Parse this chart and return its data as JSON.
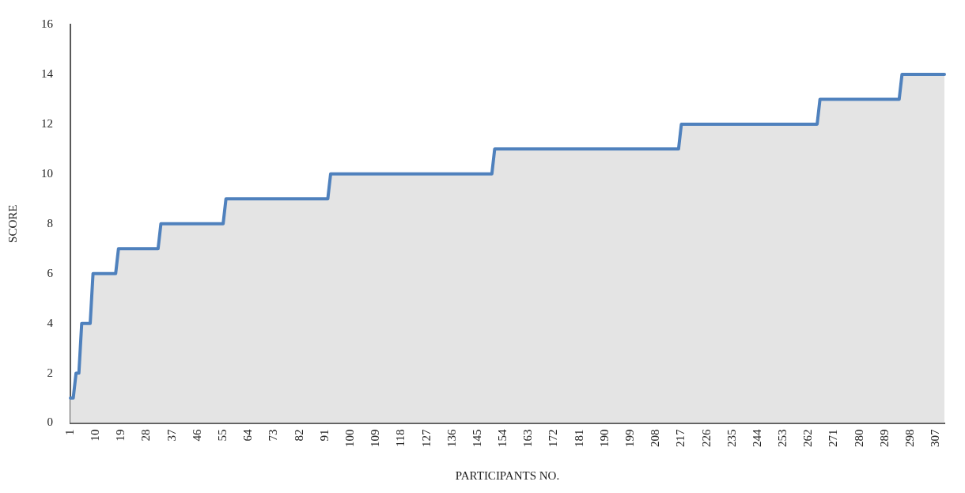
{
  "chart_data": {
    "type": "area",
    "xlabel": "PARTICIPANTS NO.",
    "ylabel": "SCORE",
    "categories": [
      "1",
      null,
      null,
      null,
      null,
      null,
      null,
      null,
      null,
      "10",
      null,
      null,
      null,
      null,
      null,
      null,
      null,
      null,
      "19",
      null,
      null,
      null,
      null,
      null,
      null,
      null,
      null,
      "28",
      null,
      null,
      null,
      null,
      null,
      null,
      null,
      null,
      "37",
      null,
      null,
      null,
      null,
      null,
      null,
      null,
      null,
      "46",
      null,
      null,
      null,
      null,
      null,
      null,
      null,
      null,
      "55",
      null,
      null,
      null,
      null,
      null,
      null,
      null,
      null,
      "64",
      null,
      null,
      null,
      null,
      null,
      null,
      null,
      null,
      "73",
      null,
      null,
      null,
      null,
      null,
      null,
      null,
      null,
      "82",
      null,
      null,
      null,
      null,
      null,
      null,
      null,
      null,
      "91",
      null,
      null,
      null,
      null,
      null,
      null,
      null,
      null,
      "100",
      null,
      null,
      null,
      null,
      null,
      null,
      null,
      null,
      "109",
      null,
      null,
      null,
      null,
      null,
      null,
      null,
      null,
      "118",
      null,
      null,
      null,
      null,
      null,
      null,
      null,
      null,
      "127",
      null,
      null,
      null,
      null,
      null,
      null,
      null,
      null,
      "136",
      null,
      null,
      null,
      null,
      null,
      null,
      null,
      null,
      "145",
      null,
      null,
      null,
      null,
      null,
      null,
      null,
      null,
      "154",
      null,
      null,
      null,
      null,
      null,
      null,
      null,
      null,
      "163",
      null,
      null,
      null,
      null,
      null,
      null,
      null,
      null,
      "172",
      null,
      null,
      null,
      null,
      null,
      null,
      null,
      null,
      "181",
      null,
      null,
      null,
      null,
      null,
      null,
      null,
      null,
      "190",
      null,
      null,
      null,
      null,
      null,
      null,
      null,
      null,
      "199",
      null,
      null,
      null,
      null,
      null,
      null,
      null,
      null,
      "208",
      null,
      null,
      null,
      null,
      null,
      null,
      null,
      null,
      "217",
      null,
      null,
      null,
      null,
      null,
      null,
      null,
      null,
      "226",
      null,
      null,
      null,
      null,
      null,
      null,
      null,
      null,
      "235",
      null,
      null,
      null,
      null,
      null,
      null,
      null,
      null,
      "244",
      null,
      null,
      null,
      null,
      null,
      null,
      null,
      null,
      "253",
      null,
      null,
      null,
      null,
      null,
      null,
      null,
      null,
      "262",
      null,
      null,
      null,
      null,
      null,
      null,
      null,
      null,
      "271",
      null,
      null,
      null,
      null,
      null,
      null,
      null,
      null,
      "280",
      null,
      null,
      null,
      null,
      null,
      null,
      null,
      null,
      "289",
      null,
      null,
      null,
      null,
      null,
      null,
      null,
      null,
      "298",
      null,
      null,
      null,
      null,
      null,
      null,
      null,
      null,
      "307",
      null,
      null,
      null
    ],
    "series": [
      {
        "color": "#4f81bd",
        "values": [
          1,
          1,
          2,
          2,
          4,
          4,
          4,
          4,
          6,
          6,
          6,
          6,
          6,
          6,
          6,
          6,
          6,
          7,
          7,
          7,
          7,
          7,
          7,
          7,
          7,
          7,
          7,
          7,
          7,
          7,
          7,
          7,
          8,
          8,
          8,
          8,
          8,
          8,
          8,
          8,
          8,
          8,
          8,
          8,
          8,
          8,
          8,
          8,
          8,
          8,
          8,
          8,
          8,
          8,
          8,
          9,
          9,
          9,
          9,
          9,
          9,
          9,
          9,
          9,
          9,
          9,
          9,
          9,
          9,
          9,
          9,
          9,
          9,
          9,
          9,
          9,
          9,
          9,
          9,
          9,
          9,
          9,
          9,
          9,
          9,
          9,
          9,
          9,
          9,
          9,
          9,
          9,
          10,
          10,
          10,
          10,
          10,
          10,
          10,
          10,
          10,
          10,
          10,
          10,
          10,
          10,
          10,
          10,
          10,
          10,
          10,
          10,
          10,
          10,
          10,
          10,
          10,
          10,
          10,
          10,
          10,
          10,
          10,
          10,
          10,
          10,
          10,
          10,
          10,
          10,
          10,
          10,
          10,
          10,
          10,
          10,
          10,
          10,
          10,
          10,
          10,
          10,
          10,
          10,
          10,
          10,
          10,
          10,
          10,
          10,
          11,
          11,
          11,
          11,
          11,
          11,
          11,
          11,
          11,
          11,
          11,
          11,
          11,
          11,
          11,
          11,
          11,
          11,
          11,
          11,
          11,
          11,
          11,
          11,
          11,
          11,
          11,
          11,
          11,
          11,
          11,
          11,
          11,
          11,
          11,
          11,
          11,
          11,
          11,
          11,
          11,
          11,
          11,
          11,
          11,
          11,
          11,
          11,
          11,
          11,
          11,
          11,
          11,
          11,
          11,
          11,
          11,
          11,
          11,
          11,
          11,
          11,
          11,
          11,
          11,
          11,
          12,
          12,
          12,
          12,
          12,
          12,
          12,
          12,
          12,
          12,
          12,
          12,
          12,
          12,
          12,
          12,
          12,
          12,
          12,
          12,
          12,
          12,
          12,
          12,
          12,
          12,
          12,
          12,
          12,
          12,
          12,
          12,
          12,
          12,
          12,
          12,
          12,
          12,
          12,
          12,
          12,
          12,
          12,
          12,
          12,
          12,
          12,
          12,
          12,
          13,
          13,
          13,
          13,
          13,
          13,
          13,
          13,
          13,
          13,
          13,
          13,
          13,
          13,
          13,
          13,
          13,
          13,
          13,
          13,
          13,
          13,
          13,
          13,
          13,
          13,
          13,
          13,
          13,
          14,
          14,
          14,
          14,
          14,
          14,
          14,
          14,
          14,
          14,
          14,
          14,
          14,
          14,
          14,
          14
        ]
      }
    ],
    "ylim": [
      0,
      16
    ],
    "yticks": [
      0,
      2,
      4,
      6,
      8,
      10,
      12,
      14,
      16
    ],
    "grid": false,
    "legend": false,
    "marker": "none"
  }
}
